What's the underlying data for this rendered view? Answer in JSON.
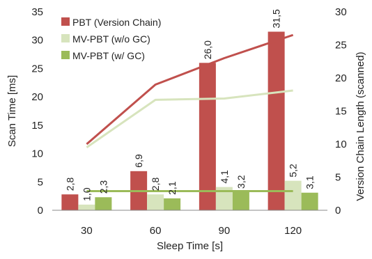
{
  "chart_data": {
    "type": "bar",
    "categories": [
      "30",
      "60",
      "90",
      "120"
    ],
    "xlabel": "Sleep Time [s]",
    "ylabel": "Scan Time [ms]",
    "y2label": "Version Chain Length (scanned)",
    "ylim": [
      0,
      35
    ],
    "y2lim": [
      0,
      30
    ],
    "yticks": [
      "0",
      "5",
      "10",
      "15",
      "20",
      "25",
      "30",
      "35"
    ],
    "y2ticks": [
      "0",
      "5",
      "10",
      "15",
      "20",
      "25",
      "30"
    ],
    "grid": false,
    "legend_position": "top-left",
    "series": [
      {
        "name": "PBT (Version Chain)",
        "values": [
          2.8,
          6.9,
          26.0,
          31.5
        ],
        "labels": [
          "2,8",
          "6,9",
          "26,0",
          "31,5"
        ],
        "color": "#c0504d"
      },
      {
        "name": "MV-PBT (w/o GC)",
        "values": [
          1.0,
          2.8,
          4.1,
          5.2
        ],
        "labels": [
          "1,0",
          "2,8",
          "4,1",
          "5,2"
        ],
        "color": "#d7e4bd"
      },
      {
        "name": "MV-PBT (w/ GC)",
        "values": [
          2.3,
          2.1,
          3.2,
          3.1
        ],
        "labels": [
          "2,3",
          "2,1",
          "3,2",
          "3,1"
        ],
        "color": "#9bbb59"
      }
    ],
    "lines": [
      {
        "series": "PBT (Version Chain)",
        "axis": "secondary",
        "values": [
          10,
          19,
          23,
          26.5
        ],
        "color": "#c0504d"
      },
      {
        "series": "MV-PBT (w/o GC)",
        "axis": "secondary",
        "values": [
          9.5,
          16.7,
          16.9,
          18.1
        ],
        "color": "#d7e4bd"
      },
      {
        "series": "MV-PBT (w/ GC)",
        "axis": "secondary",
        "values": [
          2.9,
          2.9,
          2.9,
          2.9
        ],
        "color": "#9bbb59"
      }
    ]
  }
}
